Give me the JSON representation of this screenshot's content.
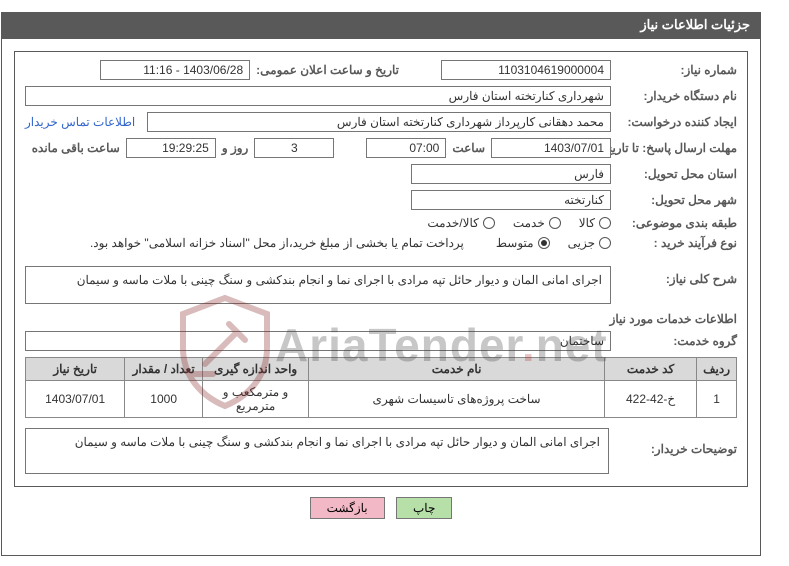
{
  "title": "جزئیات اطلاعات نیاز",
  "labels": {
    "need_number": "شماره نیاز:",
    "announce_datetime": "تاریخ و ساعت اعلان عمومی:",
    "buyer_org": "نام دستگاه خریدار:",
    "requester": "ایجاد کننده درخواست:",
    "deadline_to": "مهلت ارسال پاسخ: تا تاریخ:",
    "hour": "ساعت",
    "days_and": "روز و",
    "time_left": "ساعت باقی مانده",
    "delivery_province": "استان محل تحویل:",
    "delivery_city": "شهر محل تحویل:",
    "subject_class": "طبقه بندی موضوعی:",
    "buy_type": "نوع فرآیند خرید :",
    "need_summary": "شرح کلی نیاز:",
    "service_info": "اطلاعات خدمات مورد نیاز",
    "service_group": "گروه خدمت:",
    "buyer_contact": "اطلاعات تماس خریدار",
    "buyer_notes": "توضیحات خریدار:"
  },
  "fields": {
    "need_number": "1103104619000004",
    "announce_datetime": "1403/06/28 - 11:16",
    "buyer_org": "شهرداری کنارتخته استان فارس",
    "requester": "محمد دهقانی کارپرداز شهرداری کنارتخته استان فارس",
    "deadline_date": "1403/07/01",
    "deadline_hour": "07:00",
    "days_left": "3",
    "countdown": "19:29:25",
    "province": "فارس",
    "city": "کنارتخته",
    "service_group": "ساختمان"
  },
  "subject_class": {
    "options": [
      {
        "label": "کالا",
        "checked": false
      },
      {
        "label": "خدمت",
        "checked": false
      },
      {
        "label": "کالا/خدمت",
        "checked": false
      }
    ]
  },
  "buy_type": {
    "options": [
      {
        "label": "جزیی",
        "checked": false
      },
      {
        "label": "متوسط",
        "checked": true
      }
    ],
    "note": "پرداخت تمام یا بخشی از مبلغ خرید،از محل \"اسناد خزانه اسلامی\" خواهد بود."
  },
  "summary_text": "اجرای امانی المان و دیوار حائل تپه مرادی با اجرای نما و انجام بندکشی و سنگ چینی با ملات ماسه و سیمان",
  "table": {
    "columns": [
      "ردیف",
      "کد خدمت",
      "نام خدمت",
      "واحد اندازه گیری",
      "تعداد / مقدار",
      "تاریخ نیاز"
    ],
    "col_widths": [
      "5%",
      "13%",
      "42%",
      "15%",
      "11%",
      "14%"
    ],
    "rows": [
      [
        "1",
        "خ-42-422",
        "ساخت پروژه‌های تاسیسات شهری",
        "و مترمکعب و مترمربع",
        "1000",
        "1403/07/01"
      ]
    ]
  },
  "buyer_notes_text": "اجرای امانی المان و دیوار حائل تپه مرادی با اجرای نما و انجام بندکشی و سنگ چینی با ملات ماسه و سیمان",
  "buttons": {
    "print": "چاپ",
    "back": "بازگشت"
  },
  "watermark_text_parts": [
    "AriaTender",
    ".",
    "net"
  ],
  "colors": {
    "header_bg": "#595959",
    "border": "#595959",
    "input_border": "#767676",
    "th_bg": "#d9d9d9",
    "link": "#3366cc",
    "btn_green": "#b7e0a9",
    "btn_pink": "#f3b8c5",
    "wm_red": "#b53030"
  }
}
